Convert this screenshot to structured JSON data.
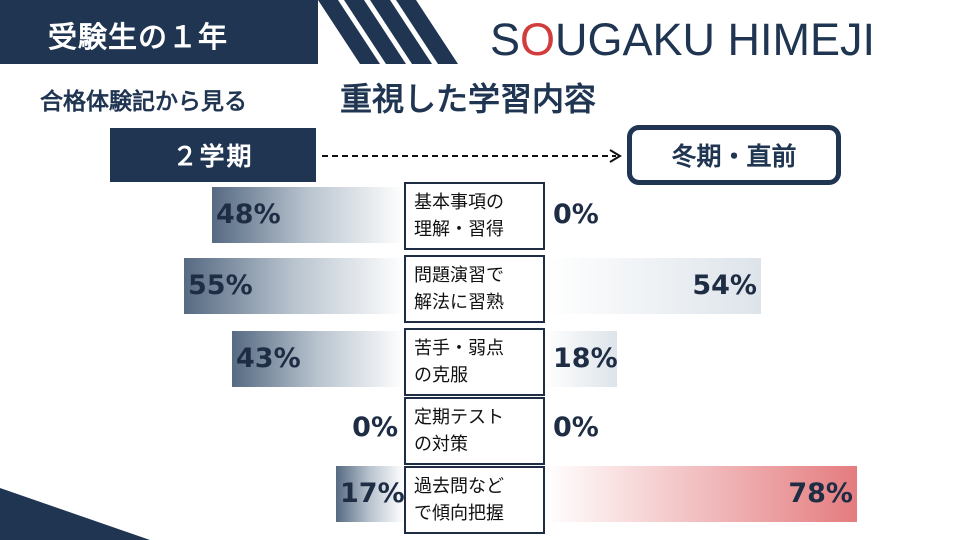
{
  "header": {
    "title": "受験生の１年",
    "brand_prefix": "S",
    "brand_accent": "O",
    "brand_suffix": "UGAKU HIMEJI"
  },
  "subtitle": {
    "prefix": "合格体験記から見る",
    "main": "重視した学習内容"
  },
  "period_labels": {
    "left": "２学期",
    "right": "冬期・直前"
  },
  "colors": {
    "navy": "#1f3552",
    "accent_red": "#d23c3c",
    "bar_red": "#e47c7f"
  },
  "chart_data": {
    "type": "bar",
    "orientation": "diverging-horizontal",
    "categories": [
      "基本事項の理解・習得",
      "問題演習で解法に習熟",
      "苦手・弱点の克服",
      "定期テストの対策",
      "過去問などで傾向把握"
    ],
    "category_lines": [
      [
        "基本事項の",
        "理解・習得"
      ],
      [
        "問題演習で",
        "解法に習熟"
      ],
      [
        "苦手・弱点",
        "の克服"
      ],
      [
        "定期テスト",
        "の対策"
      ],
      [
        "過去問など",
        "で傾向把握"
      ]
    ],
    "series": [
      {
        "name": "２学期",
        "values": [
          48,
          55,
          43,
          0,
          17
        ],
        "labels": [
          "48%",
          "55%",
          "43%",
          "0%",
          "17%"
        ]
      },
      {
        "name": "冬期・直前",
        "values": [
          0,
          54,
          18,
          0,
          78
        ],
        "labels": [
          "0%",
          "54%",
          "18%",
          "0%",
          "78%"
        ]
      }
    ],
    "unit": "%",
    "highlight": {
      "series": 1,
      "index": 4
    }
  }
}
